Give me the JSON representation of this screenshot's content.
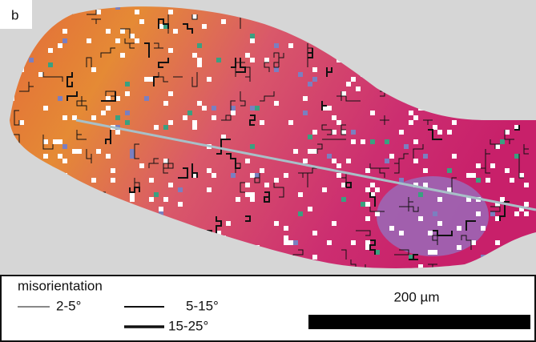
{
  "panel_label": "b",
  "legend": {
    "title": "misorientation",
    "items": [
      {
        "label": "2-5°"
      },
      {
        "label": "5-15°"
      },
      {
        "label": "15-25°"
      }
    ]
  },
  "scale_bar": {
    "label": "200 µm"
  }
}
